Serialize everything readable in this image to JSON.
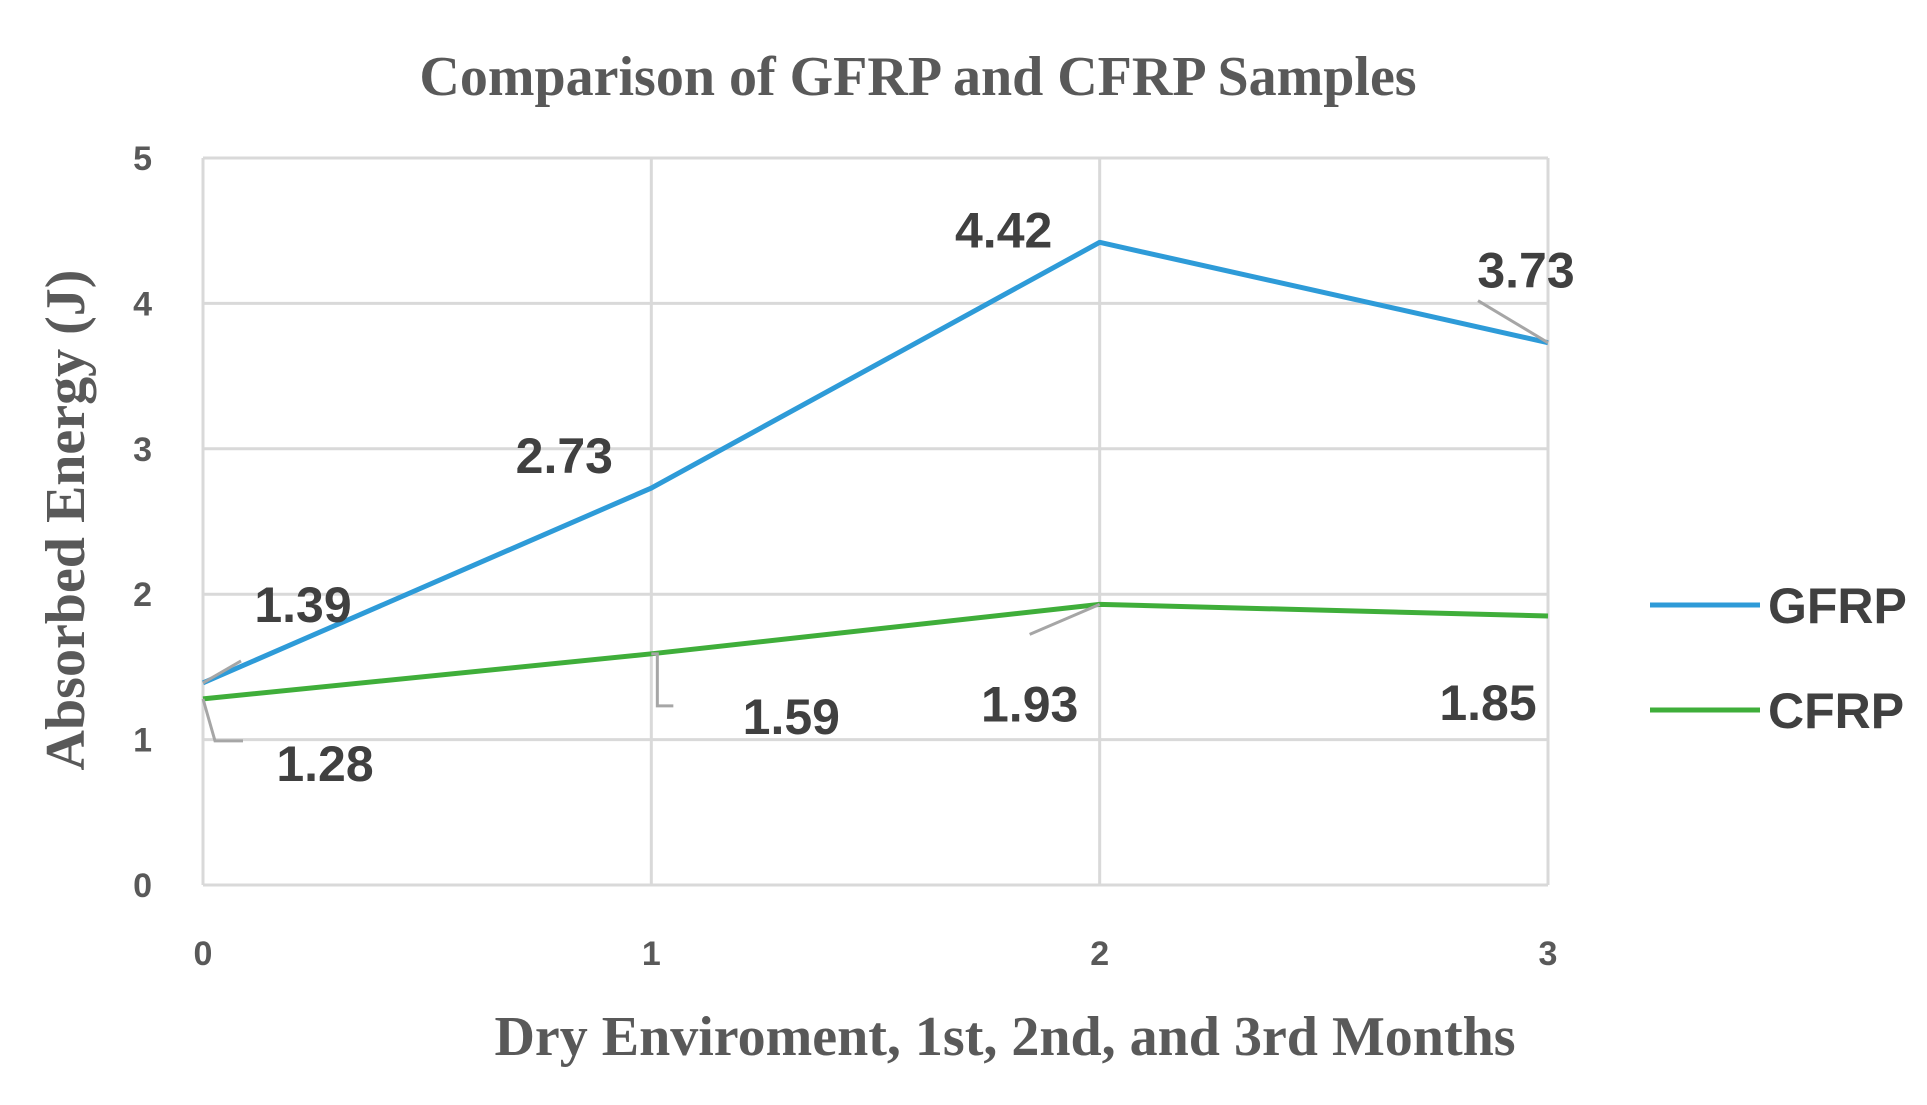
{
  "chart_data": {
    "type": "line",
    "title": "Comparison of GFRP and CFRP Samples",
    "xlabel": "Dry Enviroment, 1st, 2nd, and 3rd Months",
    "ylabel": "Absorbed Energy (J)",
    "x": [
      0,
      1,
      2,
      3
    ],
    "x_tick_labels": [
      "0",
      "1",
      "2",
      "3"
    ],
    "y_tick_labels": [
      "0",
      "1",
      "2",
      "3",
      "4",
      "5"
    ],
    "xlim": [
      0,
      3
    ],
    "ylim": [
      0,
      5
    ],
    "grid": true,
    "legend_position": "right",
    "series": [
      {
        "name": "GFRP",
        "color": "#2e9bd8",
        "values": [
          1.39,
          2.73,
          4.42,
          3.73
        ],
        "labels": [
          "1.39",
          "2.73",
          "4.42",
          "3.73"
        ]
      },
      {
        "name": "CFRP",
        "color": "#3fae3a",
        "values": [
          1.28,
          1.59,
          1.93,
          1.85
        ],
        "labels": [
          "1.28",
          "1.59",
          "1.93",
          "1.85"
        ]
      }
    ]
  }
}
